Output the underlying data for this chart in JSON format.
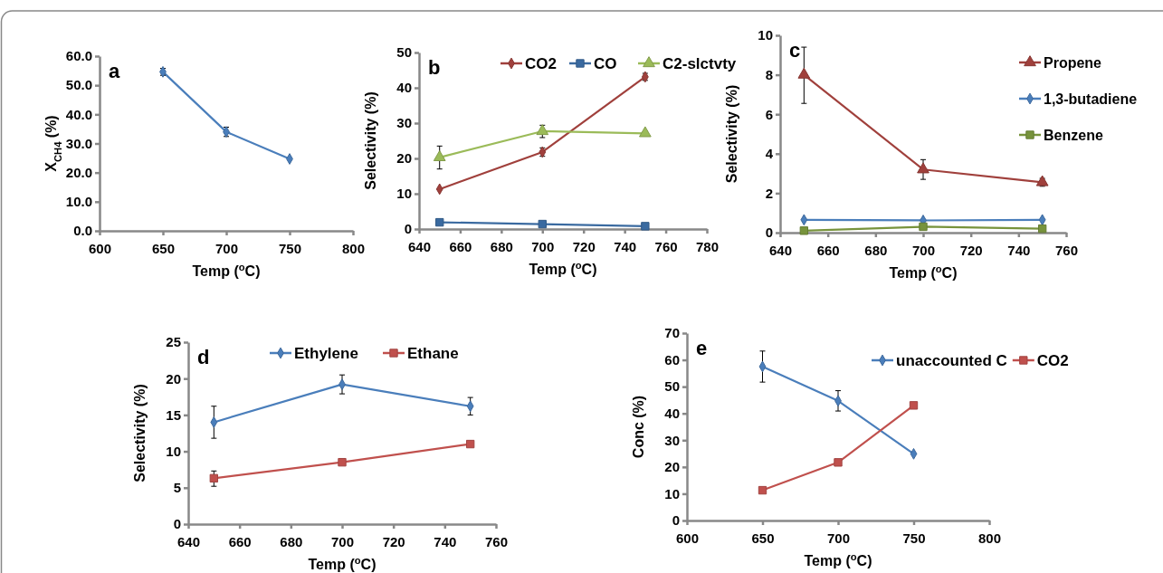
{
  "chart_data": [
    {
      "type": "line",
      "xlabel": "Temp ($^{o}$C)",
      "ylabel": "X$_{CH4}$ (%)",
      "annotations": [
        "a"
      ],
      "x": [
        650,
        700,
        750
      ],
      "xlim": [
        600,
        800
      ],
      "xticks": [
        600,
        650,
        700,
        750,
        800
      ],
      "ylim": [
        0,
        60
      ],
      "yticks": [
        {
          "value": 0,
          "label": "0.0"
        },
        {
          "value": 10,
          "label": "10.0"
        },
        {
          "value": 20,
          "label": "20.0"
        },
        {
          "value": 30,
          "label": "30.0"
        },
        {
          "value": 40,
          "label": "40.0"
        },
        {
          "value": 50,
          "label": "50.0"
        },
        {
          "value": 60,
          "label": "60.0"
        }
      ],
      "grid": false,
      "legend": false,
      "series": [
        {
          "color": "#4a7ebb",
          "marker": "diamond",
          "values": [
            54.6,
            34.0,
            24.7
          ],
          "errors": [
            1.2,
            1.6,
            null
          ]
        }
      ]
    },
    {
      "type": "line",
      "xlabel": "Temp ($^{o}$C)",
      "ylabel": "Selectivity (%)",
      "annotations": [
        "b"
      ],
      "x": [
        650,
        700,
        750
      ],
      "xlim": [
        640,
        780
      ],
      "xticks": [
        640,
        660,
        680,
        700,
        720,
        740,
        760,
        780
      ],
      "ylim": [
        0,
        50
      ],
      "yticks": [
        0,
        10,
        20,
        30,
        40,
        50
      ],
      "grid": false,
      "legend": "top",
      "series": [
        {
          "name": "CO2",
          "color": "#a0403c",
          "marker": "diamond",
          "values": [
            11.3,
            21.8,
            43.1
          ],
          "errors": [
            null,
            1.2,
            1.0
          ]
        },
        {
          "name": "CO",
          "color": "#3a6aa0",
          "marker": "square",
          "values": [
            1.9,
            1.4,
            0.8
          ]
        },
        {
          "name": "C2-slctvty",
          "color": "#9bbb59",
          "marker": "triangle",
          "values": [
            20.3,
            27.7,
            27.1
          ],
          "errors": [
            [
              17.0,
              23.5
            ],
            [
              25.9,
              29.4
            ],
            null
          ]
        }
      ]
    },
    {
      "type": "line",
      "xlabel": "Temp ($^{o}$C)",
      "ylabel": "Selectivity (%)",
      "annotations": [
        "c"
      ],
      "x": [
        650,
        700,
        750
      ],
      "xlim": [
        640,
        760
      ],
      "xticks": [
        640,
        660,
        680,
        700,
        720,
        740,
        760
      ],
      "ylim": [
        0,
        10
      ],
      "yticks": [
        0,
        2,
        4,
        6,
        8,
        10
      ],
      "grid": false,
      "legend": "right",
      "series": [
        {
          "name": "Propene",
          "color": "#a0403c",
          "marker": "triangle",
          "values": [
            8.0,
            3.2,
            2.55
          ],
          "errors": [
            [
              6.55,
              9.4
            ],
            [
              2.7,
              3.7
            ],
            0.2
          ]
        },
        {
          "name": "1,3-butadiene",
          "color": "#4a7ebb",
          "marker": "diamond",
          "values": [
            0.65,
            0.62,
            0.65
          ]
        },
        {
          "name": "Benzene",
          "color": "#77933c",
          "marker": "square",
          "values": [
            0.1,
            0.3,
            0.2
          ]
        }
      ]
    },
    {
      "type": "line",
      "xlabel": "Temp ($^{o}$C)",
      "ylabel": "Selectivity (%)",
      "annotations": [
        "d"
      ],
      "x": [
        650,
        700,
        750
      ],
      "xlim": [
        640,
        760
      ],
      "xticks": [
        640,
        660,
        680,
        700,
        720,
        740,
        760
      ],
      "ylim": [
        0,
        25
      ],
      "yticks": [
        0,
        5,
        10,
        15,
        20,
        25
      ],
      "grid": false,
      "legend": "top",
      "series": [
        {
          "name": "Ethylene",
          "color": "#4a7ebb",
          "marker": "diamond",
          "values": [
            14.0,
            19.2,
            16.2
          ],
          "errors": [
            [
              11.8,
              16.2
            ],
            [
              17.9,
              20.5
            ],
            [
              15.0,
              17.4
            ]
          ]
        },
        {
          "name": "Ethane",
          "color": "#c0504d",
          "marker": "square",
          "values": [
            6.3,
            8.5,
            11.0
          ],
          "errors": [
            [
              5.2,
              7.3
            ],
            null,
            null
          ]
        }
      ]
    },
    {
      "type": "line",
      "xlabel": "Temp ($^{o}$C)",
      "ylabel": "Conc (%)",
      "annotations": [
        "e"
      ],
      "x": [
        650,
        700,
        750
      ],
      "xlim": [
        600,
        800
      ],
      "xticks": [
        600,
        650,
        700,
        750,
        800
      ],
      "ylim": [
        0,
        70
      ],
      "yticks": [
        0,
        10,
        20,
        30,
        40,
        50,
        60,
        70
      ],
      "grid": false,
      "legend": "top right",
      "series": [
        {
          "name": "unaccounted C",
          "color": "#4a7ebb",
          "marker": "diamond",
          "values": [
            57.5,
            44.7,
            24.9
          ],
          "errors": [
            [
              51.7,
              63.3
            ],
            [
              40.9,
              48.5
            ],
            null
          ]
        },
        {
          "name": "CO2",
          "color": "#c0504d",
          "marker": "square",
          "values": [
            11.3,
            21.7,
            43.0
          ]
        }
      ]
    }
  ]
}
